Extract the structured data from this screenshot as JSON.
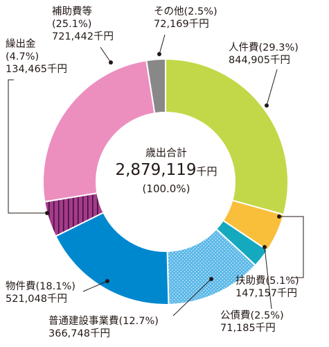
{
  "chart_data": {
    "type": "pie",
    "center": {
      "title": "歳出合計",
      "total_value": "2,879,119",
      "total_unit": "千円",
      "total_percent": "(100.0%)"
    },
    "slices": [
      {
        "name": "人件費",
        "percent": 29.3,
        "value": 844905,
        "pct_label": "(29.3%)",
        "value_label": "844,905千円",
        "color": "#c3d848",
        "pattern": "none"
      },
      {
        "name": "扶助費",
        "percent": 5.1,
        "value": 147157,
        "pct_label": "(5.1%)",
        "value_label": "147,157千円",
        "color": "#f9bf3b",
        "pattern": "none"
      },
      {
        "name": "公債費",
        "percent": 2.5,
        "value": 71185,
        "pct_label": "(2.5%)",
        "value_label": "71,185千円",
        "color": "#15a9bf",
        "pattern": "none"
      },
      {
        "name": "普通建設事業費",
        "percent": 12.7,
        "value": 366748,
        "pct_label": "(12.7%)",
        "value_label": "366,748千円",
        "color": "#58b7e8",
        "pattern": "dots"
      },
      {
        "name": "物件費",
        "percent": 18.1,
        "value": 521048,
        "pct_label": "(18.1%)",
        "value_label": "521,048千円",
        "color": "#0088cf",
        "pattern": "none"
      },
      {
        "name": "繰出金",
        "percent": 4.7,
        "value": 134465,
        "pct_label": "(4.7%)",
        "value_label": "134,465千円",
        "color": "#a63a8c",
        "pattern": "stripes"
      },
      {
        "name": "補助費等",
        "percent": 25.1,
        "value": 721442,
        "pct_label": "(25.1%)",
        "value_label": "721,442千円",
        "color": "#ec8fbf",
        "pattern": "none"
      },
      {
        "name": "その他",
        "percent": 2.5,
        "value": 72169,
        "pct_label": "(2.5%)",
        "value_label": "72,169千円",
        "color": "#888888",
        "pattern": "none"
      }
    ]
  }
}
